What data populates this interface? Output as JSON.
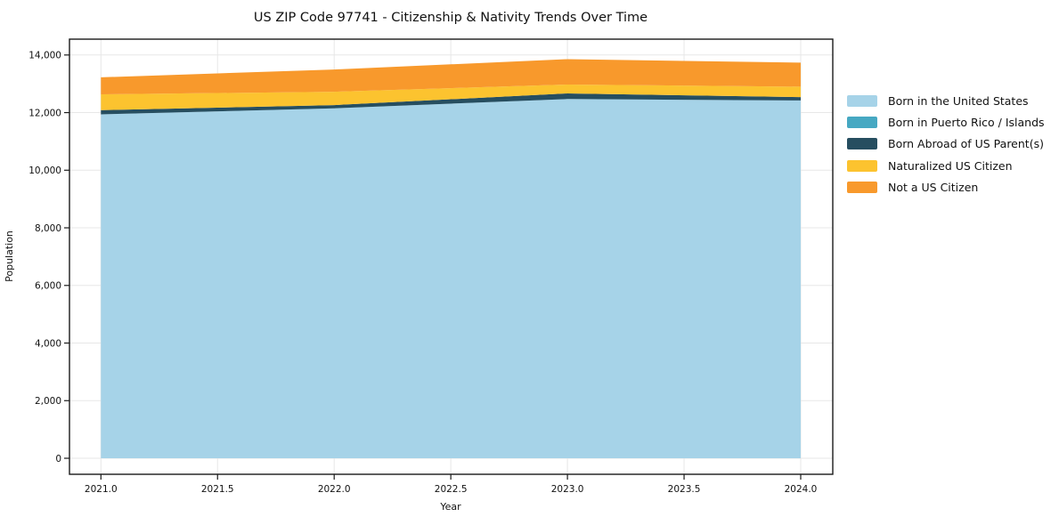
{
  "title": "US ZIP Code 97741 - Citizenship & Nativity Trends Over Time",
  "axes": {
    "x_label": "Year",
    "y_label": "Population",
    "x_ticks": [
      "2021.0",
      "2021.5",
      "2022.0",
      "2022.5",
      "2023.0",
      "2023.5",
      "2024.0"
    ],
    "y_ticks": [
      "0",
      "2,000",
      "4,000",
      "6,000",
      "8,000",
      "10,000",
      "12,000",
      "14,000"
    ]
  },
  "colors": {
    "spine": "#1a1a1a",
    "grid": "#e7e7e7",
    "text": "#111111",
    "background": "#ffffff"
  },
  "chart_data": {
    "type": "area",
    "stacked": true,
    "title": "US ZIP Code 97741 - Citizenship & Nativity Trends Over Time",
    "xlabel": "Year",
    "ylabel": "Population",
    "x": [
      2021,
      2022,
      2023,
      2024
    ],
    "xlim": [
      2020.865,
      2024.135
    ],
    "ylim": [
      -560,
      14560
    ],
    "grid": true,
    "legend_position": "center right outside",
    "series": [
      {
        "name": "Born in the United States",
        "color": "#a6d3e8",
        "values": [
          11940,
          12150,
          12470,
          12420
        ]
      },
      {
        "name": "Born in Puerto Rico / Islands",
        "color": "#46a8c2",
        "values": [
          0,
          0,
          0,
          0
        ]
      },
      {
        "name": "Born Abroad of US Parent(s)",
        "color": "#264e60",
        "values": [
          145,
          110,
          195,
          120
        ]
      },
      {
        "name": "Naturalized US Citizen",
        "color": "#fcc32f",
        "values": [
          550,
          465,
          310,
          360
        ]
      },
      {
        "name": "Not a US Citizen",
        "color": "#f8992c",
        "values": [
          590,
          770,
          880,
          835
        ]
      }
    ],
    "stacked_totals": [
      13225,
      13495,
      13855,
      13735
    ]
  }
}
